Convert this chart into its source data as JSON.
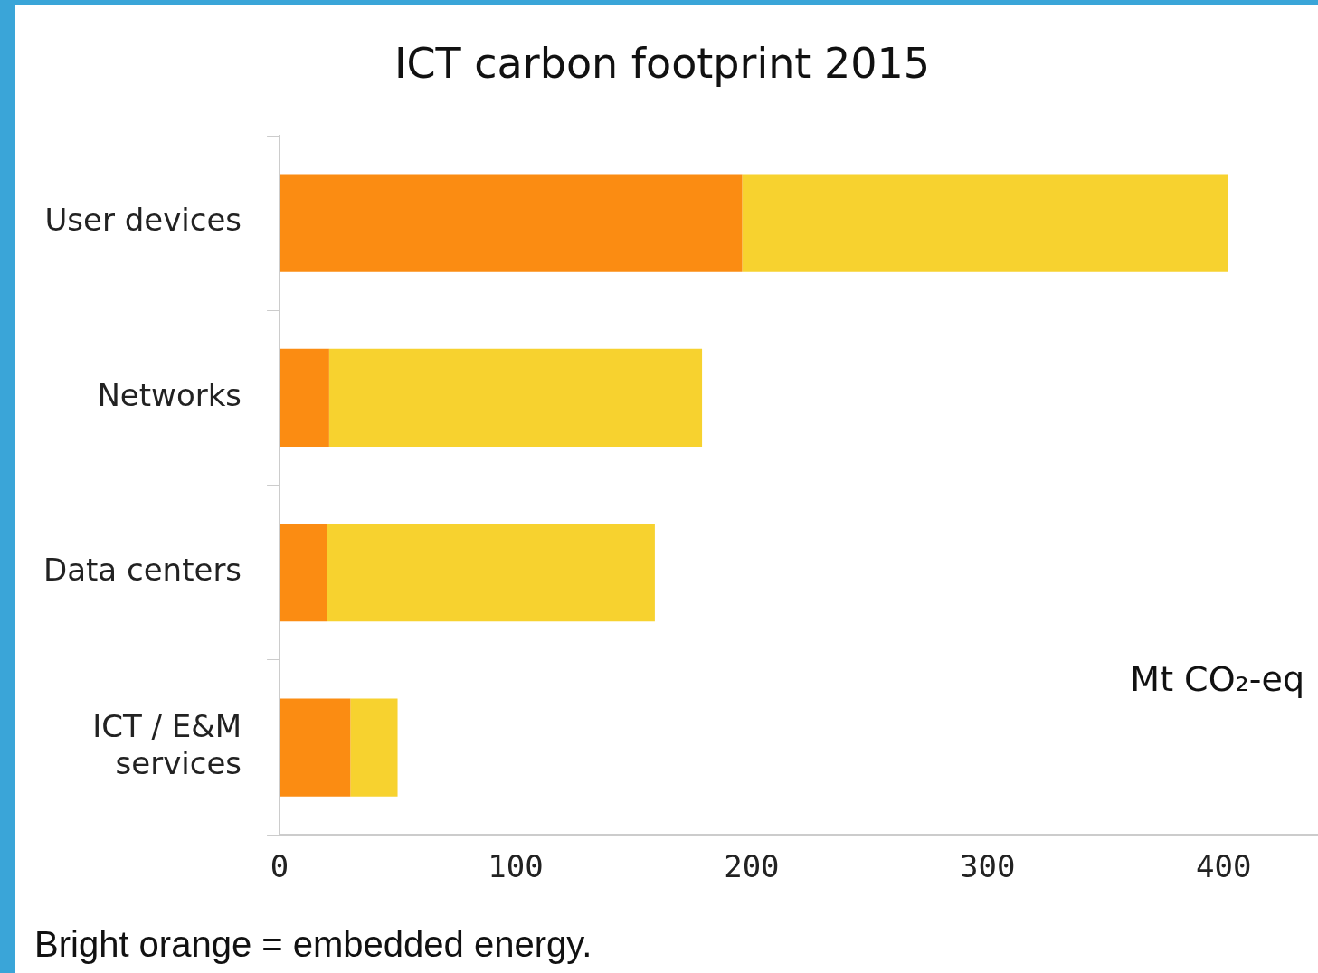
{
  "chart_data": {
    "type": "bar",
    "orientation": "horizontal",
    "stacked": true,
    "title": "ICT carbon footprint 2015",
    "xlabel": "Mt CO₂-eq",
    "categories": [
      "User devices",
      "Networks",
      "Data centers",
      "ICT / E&M services"
    ],
    "series": [
      {
        "color": "#fb8c12",
        "values": [
          196,
          21,
          20,
          30
        ]
      },
      {
        "color": "#f7d22f",
        "values": [
          206,
          158,
          139,
          20
        ]
      }
    ],
    "xlim": [
      0,
      440
    ],
    "xticks": [
      0,
      100,
      200,
      300,
      400
    ],
    "grid": false,
    "legend": false,
    "annotations": [
      "Bright orange = embedded energy."
    ]
  }
}
